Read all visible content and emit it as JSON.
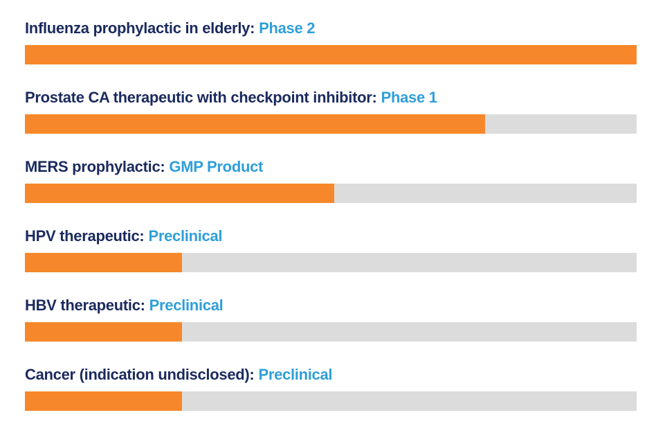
{
  "chart_data": {
    "type": "bar",
    "orientation": "horizontal",
    "xlim": [
      0,
      100
    ],
    "grid": false,
    "legend": false,
    "colors": {
      "fill": "#F6882B",
      "track": "#DCDCDC",
      "program_text": "#1B2A5E",
      "stage_text": "#2F9FD9"
    },
    "items": [
      {
        "program": "Influenza prophylactic in elderly:",
        "stage": "Phase 2",
        "percent": 100
      },
      {
        "program": "Prostate CA therapeutic with checkpoint inhibitor:",
        "stage": "Phase 1",
        "percent": 75.2
      },
      {
        "program": "MERS prophylactic:",
        "stage": "GMP Product",
        "percent": 50.6
      },
      {
        "program": "HPV therapeutic:",
        "stage": "Preclinical",
        "percent": 25.7
      },
      {
        "program": "HBV therapeutic:",
        "stage": "Preclinical",
        "percent": 25.7
      },
      {
        "program": "Cancer (indication undisclosed):",
        "stage": "Preclinical",
        "percent": 25.7
      }
    ]
  }
}
